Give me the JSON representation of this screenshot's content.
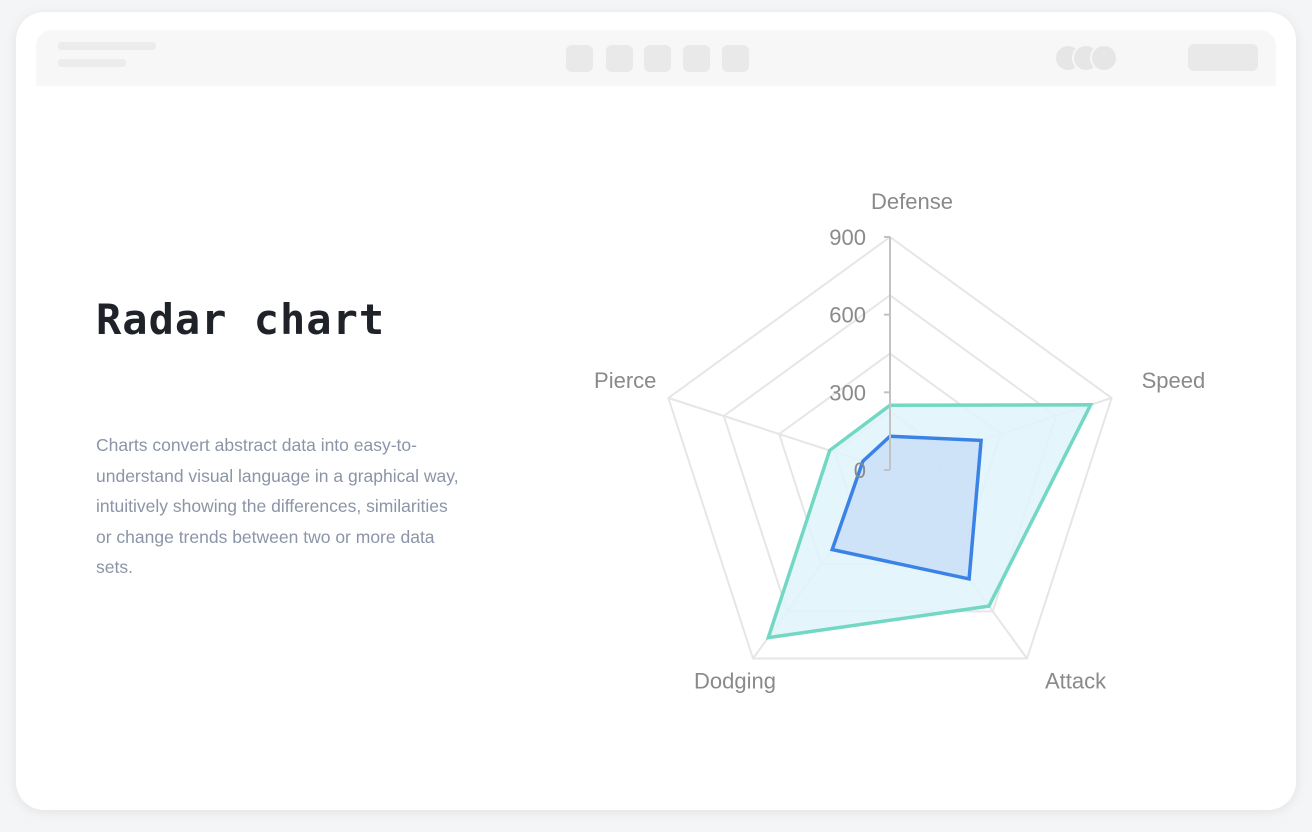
{
  "page": {
    "title": "Radar chart",
    "description": "Charts convert abstract data into easy-to-understand visual language in a graphical way, intuitively showing the differences, similarities or change trends between two or more data sets."
  },
  "chart_data": {
    "type": "radar",
    "title": "",
    "indicators": [
      "Defense",
      "Speed",
      "Attack",
      "Dodging",
      "Pierce"
    ],
    "max": 900,
    "ticks": [
      "0",
      "300",
      "600",
      "900"
    ],
    "tick_values": [
      0,
      300,
      600,
      900
    ],
    "rings": 4,
    "series": [
      {
        "values": [
          250,
          815,
          650,
          800,
          245
        ],
        "line_color": "#72d8c4",
        "fill_color": "#dff3fb"
      },
      {
        "values": [
          130,
          370,
          520,
          380,
          110
        ],
        "line_color": "#3b82e6",
        "fill_color": "#c4daf6"
      }
    ]
  },
  "colors": {
    "grid": "#e6e6e6",
    "axis": "#c2c2c2",
    "label": "#8a8a8a",
    "title": "#1f2329",
    "description": "#8b95a7"
  }
}
